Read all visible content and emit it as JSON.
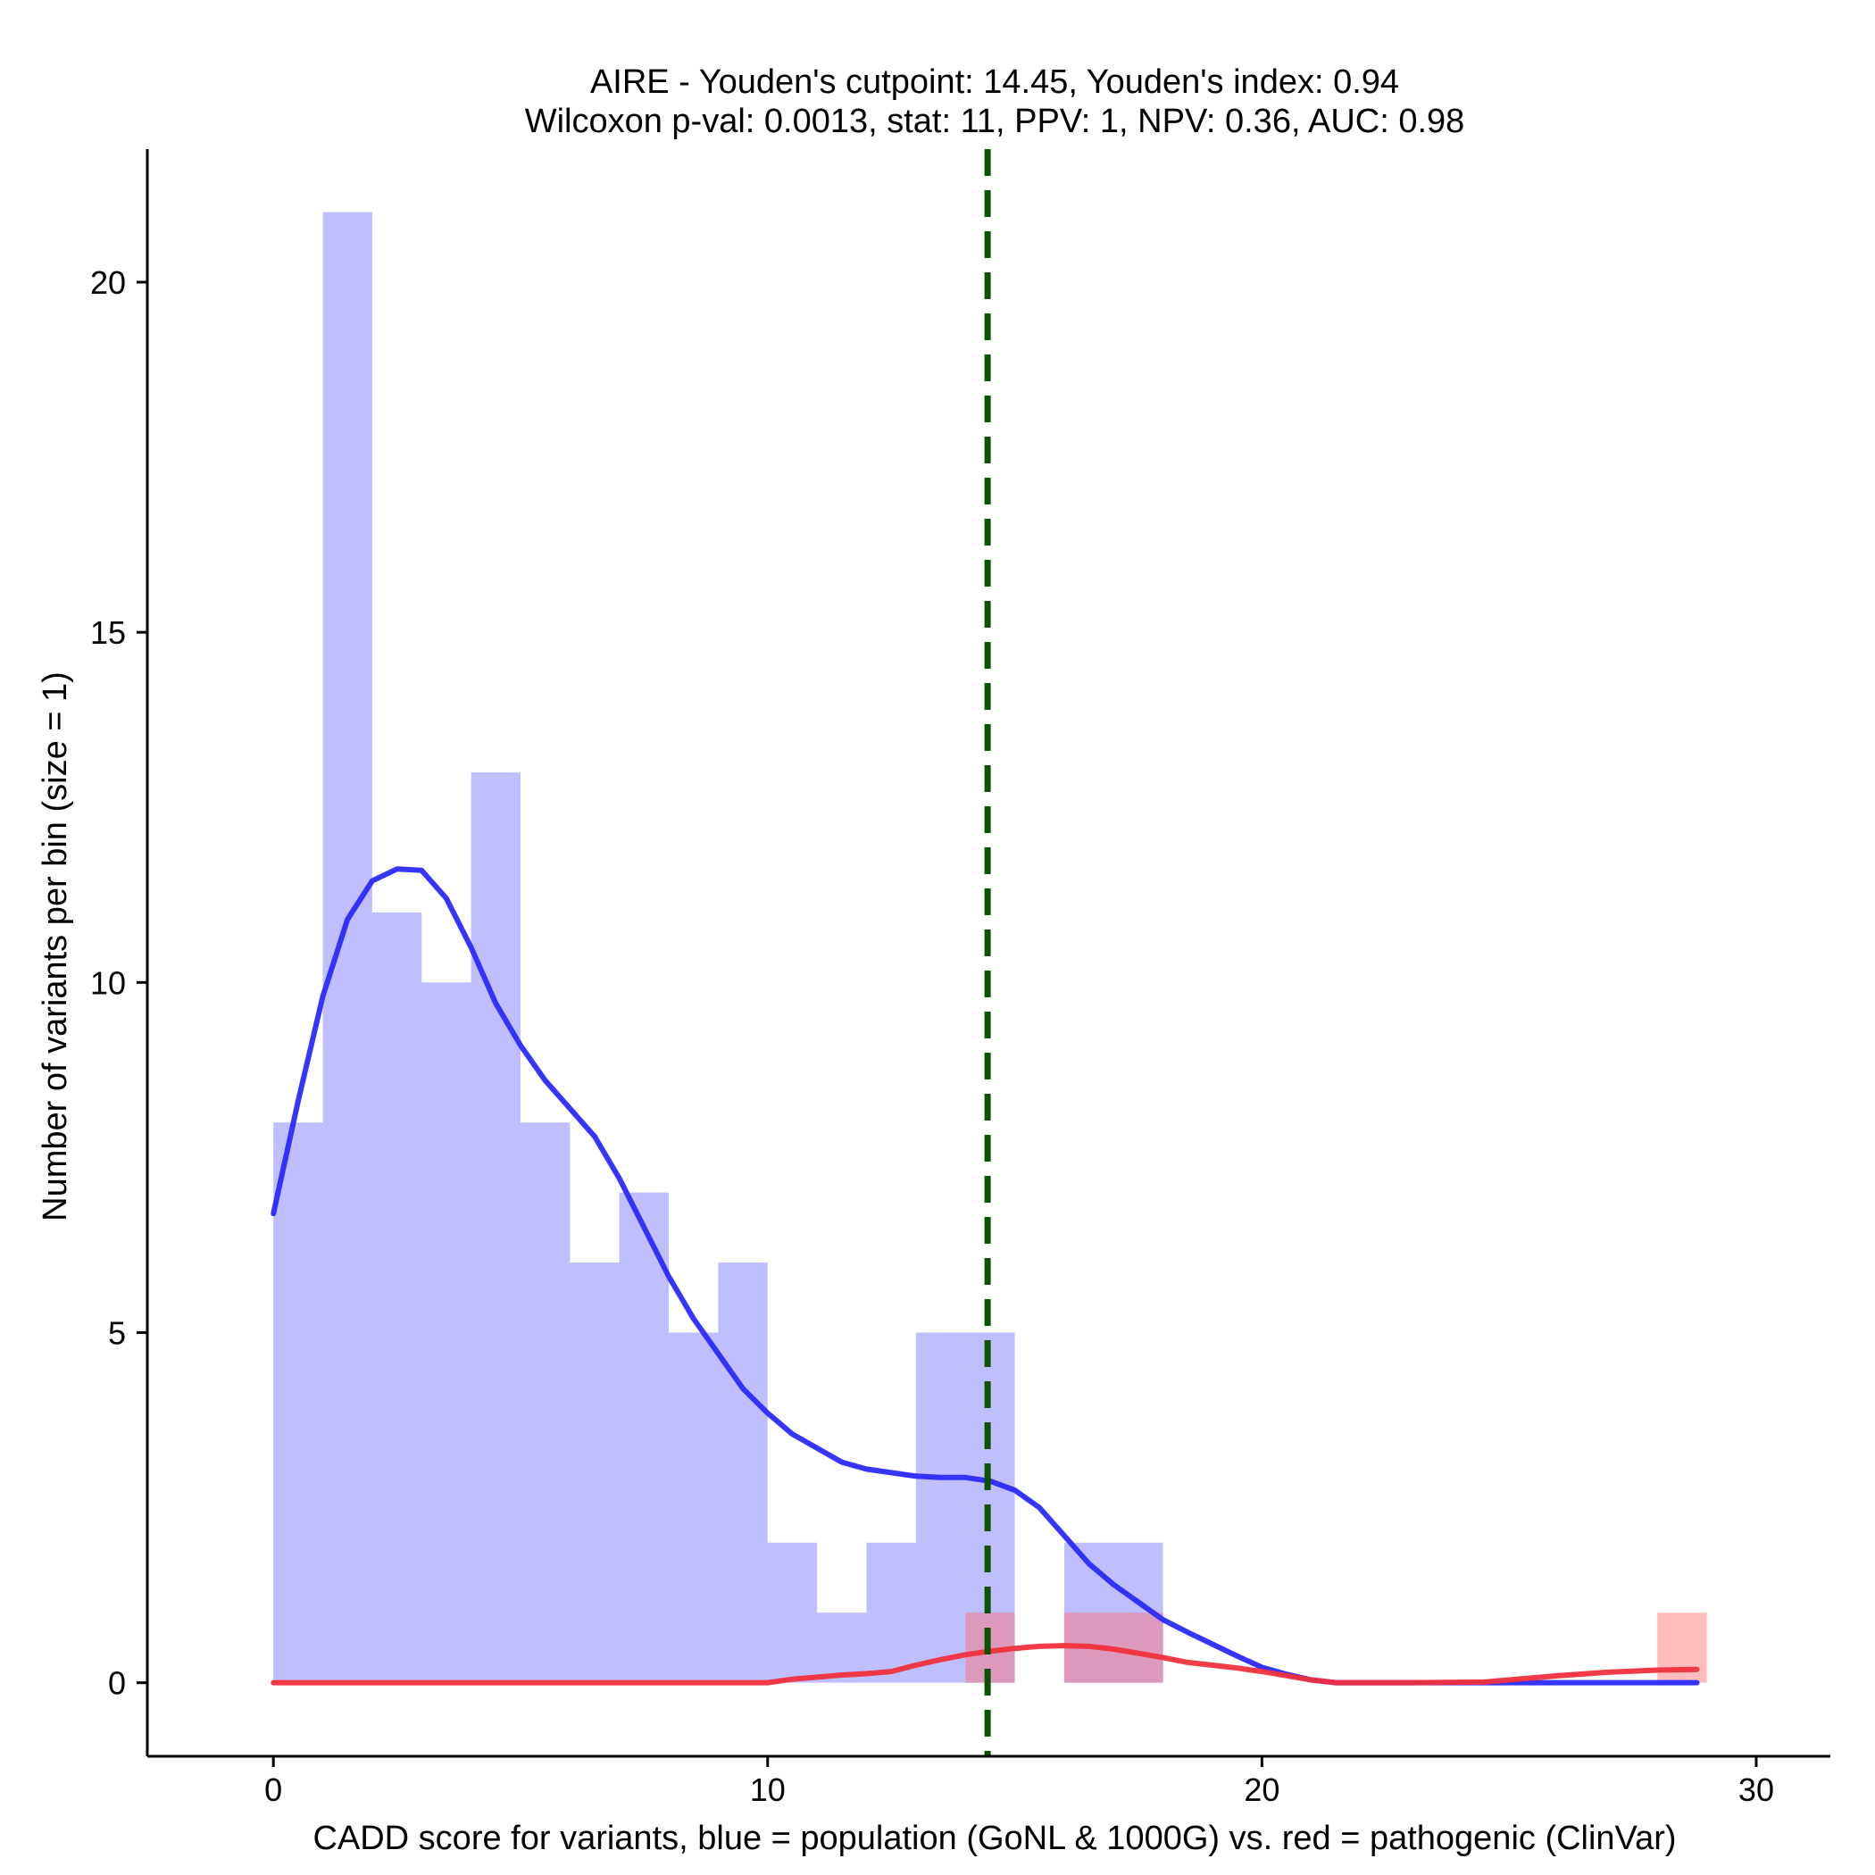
{
  "chart_data": {
    "type": "bar",
    "title": "AIRE - Youden's cutpoint: 14.45, Youden's index: 0.94",
    "subtitle": "Wilcoxon p-val: 0.0013, stat: 11, PPV: 1, NPV: 0.36, AUC: 0.98",
    "xlabel": "CADD score for variants, blue = population (GoNL & 1000G) vs. red = pathogenic (ClinVar)",
    "ylabel": "Number of variants per bin (size = 1)",
    "xlim": [
      -2.55,
      31.5
    ],
    "ylim": [
      -1.05,
      21.9
    ],
    "xticks": [
      0,
      10,
      20,
      30
    ],
    "yticks": [
      0,
      5,
      10,
      15,
      20
    ],
    "grid": false,
    "bin_size": 1,
    "series": [
      {
        "color": "#8080ff",
        "bins": [
          {
            "x": 0,
            "count": 8
          },
          {
            "x": 1,
            "count": 21
          },
          {
            "x": 2,
            "count": 11
          },
          {
            "x": 3,
            "count": 10
          },
          {
            "x": 4,
            "count": 13
          },
          {
            "x": 5,
            "count": 8
          },
          {
            "x": 6,
            "count": 6
          },
          {
            "x": 7,
            "count": 7
          },
          {
            "x": 8,
            "count": 5
          },
          {
            "x": 9,
            "count": 6
          },
          {
            "x": 10,
            "count": 2
          },
          {
            "x": 11,
            "count": 1
          },
          {
            "x": 12,
            "count": 2
          },
          {
            "x": 13,
            "count": 5
          },
          {
            "x": 14,
            "count": 5
          },
          {
            "x": 15,
            "count": 0
          },
          {
            "x": 16,
            "count": 2
          },
          {
            "x": 17,
            "count": 2
          }
        ],
        "density_curve": [
          [
            0,
            6.7
          ],
          [
            0.5,
            8.3
          ],
          [
            1,
            9.8
          ],
          [
            1.5,
            10.9
          ],
          [
            2,
            11.45
          ],
          [
            2.5,
            11.62
          ],
          [
            3,
            11.6
          ],
          [
            3.5,
            11.2
          ],
          [
            4,
            10.5
          ],
          [
            4.5,
            9.7
          ],
          [
            5,
            9.1
          ],
          [
            5.5,
            8.6
          ],
          [
            6,
            8.2
          ],
          [
            6.5,
            7.8
          ],
          [
            7,
            7.2
          ],
          [
            7.5,
            6.5
          ],
          [
            8,
            5.8
          ],
          [
            8.5,
            5.2
          ],
          [
            9,
            4.7
          ],
          [
            9.5,
            4.2
          ],
          [
            10,
            3.85
          ],
          [
            10.5,
            3.55
          ],
          [
            11,
            3.35
          ],
          [
            11.5,
            3.15
          ],
          [
            12,
            3.05
          ],
          [
            12.5,
            3.0
          ],
          [
            13,
            2.95
          ],
          [
            13.5,
            2.93
          ],
          [
            14,
            2.93
          ],
          [
            14.5,
            2.88
          ],
          [
            15,
            2.75
          ],
          [
            15.5,
            2.5
          ],
          [
            16,
            2.1
          ],
          [
            16.5,
            1.7
          ],
          [
            17,
            1.4
          ],
          [
            17.5,
            1.15
          ],
          [
            18,
            0.9
          ],
          [
            18.5,
            0.72
          ],
          [
            19,
            0.55
          ],
          [
            19.5,
            0.38
          ],
          [
            20,
            0.22
          ],
          [
            20.5,
            0.12
          ],
          [
            21,
            0.04
          ],
          [
            21.5,
            0.0
          ],
          [
            23,
            0.0
          ],
          [
            25,
            0.0
          ],
          [
            27,
            0.0
          ],
          [
            28.8,
            0.0
          ]
        ],
        "density_color": "#2a2aff"
      },
      {
        "color": "#ff6b6b",
        "bins": [
          {
            "x": 14,
            "count": 1
          },
          {
            "x": 16,
            "count": 1
          },
          {
            "x": 17,
            "count": 1
          },
          {
            "x": 28,
            "count": 1
          }
        ],
        "density_curve": [
          [
            0,
            0.0
          ],
          [
            5,
            0.0
          ],
          [
            10,
            0.0
          ],
          [
            10.5,
            0.05
          ],
          [
            11,
            0.08
          ],
          [
            11.5,
            0.11
          ],
          [
            12,
            0.13
          ],
          [
            12.5,
            0.16
          ],
          [
            13,
            0.25
          ],
          [
            13.5,
            0.33
          ],
          [
            14,
            0.4
          ],
          [
            14.5,
            0.45
          ],
          [
            15,
            0.49
          ],
          [
            15.5,
            0.52
          ],
          [
            16,
            0.53
          ],
          [
            16.5,
            0.52
          ],
          [
            17,
            0.48
          ],
          [
            17.5,
            0.42
          ],
          [
            18,
            0.36
          ],
          [
            18.5,
            0.29
          ],
          [
            19,
            0.25
          ],
          [
            19.5,
            0.21
          ],
          [
            20,
            0.16
          ],
          [
            20.5,
            0.1
          ],
          [
            21,
            0.04
          ],
          [
            21.5,
            0.0
          ],
          [
            23,
            0.0
          ],
          [
            24.5,
            0.01
          ],
          [
            25,
            0.04
          ],
          [
            26,
            0.1
          ],
          [
            27,
            0.15
          ],
          [
            28,
            0.18
          ],
          [
            28.8,
            0.19
          ]
        ],
        "density_color": "#f0303c"
      }
    ],
    "cutpoint": {
      "x": 14.45,
      "color": "#0b5300",
      "style": "dashed"
    }
  }
}
